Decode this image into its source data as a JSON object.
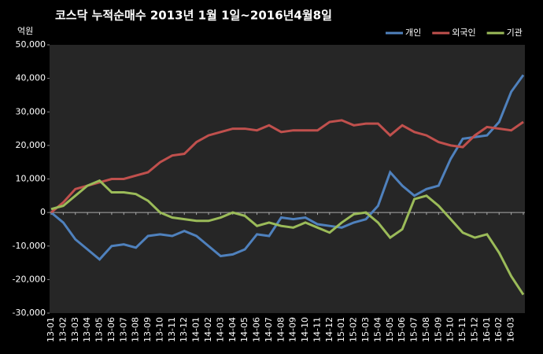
{
  "chart_data": {
    "type": "line",
    "title": "코스닥 누적순매수 2013년 1월 1일~2016년4월8일",
    "y_label": "억원",
    "categories": [
      "13-01",
      "13-02",
      "13-03",
      "13-04",
      "13-05",
      "13-06",
      "13-07",
      "13-08",
      "13-09",
      "13-10",
      "13-11",
      "13-12",
      "14-01",
      "14-02",
      "14-03",
      "14-04",
      "14-05",
      "14-06",
      "14-07",
      "14-08",
      "14-09",
      "14-10",
      "14-11",
      "14-12",
      "15-01",
      "15-02",
      "15-03",
      "15-04",
      "15-05",
      "15-06",
      "15-07",
      "15-08",
      "15-09",
      "15-10",
      "15-11",
      "15-12",
      "16-01",
      "16-02",
      "16-03",
      null
    ],
    "series": [
      {
        "name": "개인",
        "color": "#4f81bd",
        "values": [
          0,
          -3000,
          -8000,
          -11000,
          -14000,
          -10000,
          -9500,
          -10500,
          -7000,
          -6500,
          -7000,
          -5500,
          -7000,
          -10000,
          -13000,
          -12500,
          -11000,
          -6500,
          -7000,
          -1500,
          -2000,
          -1500,
          -3500,
          -4000,
          -4500,
          -3000,
          -2000,
          2000,
          12000,
          8000,
          5000,
          7000,
          8000,
          16000,
          22000,
          22500,
          23000,
          27000,
          36000,
          41000
        ]
      },
      {
        "name": "외국인",
        "color": "#c0504d",
        "values": [
          0,
          3000,
          7000,
          8000,
          9000,
          10000,
          10000,
          11000,
          12000,
          15000,
          17000,
          17500,
          21000,
          23000,
          24000,
          25000,
          25000,
          24500,
          26000,
          24000,
          24500,
          24500,
          24500,
          27000,
          27500,
          26000,
          26500,
          26500,
          23000,
          26000,
          24000,
          23000,
          21000,
          20000,
          19500,
          23000,
          25500,
          25000,
          24500,
          27000
        ]
      },
      {
        "name": "기관",
        "color": "#9bbb59",
        "values": [
          1000,
          2000,
          5000,
          8000,
          9500,
          6000,
          6000,
          5500,
          3500,
          0,
          -1500,
          -2000,
          -2500,
          -2500,
          -1500,
          0,
          -1000,
          -4000,
          -3000,
          -4000,
          -4500,
          -3000,
          -4500,
          -6000,
          -3000,
          -500,
          0,
          -3000,
          -7500,
          -5000,
          4000,
          5000,
          2000,
          -2000,
          -6000,
          -7500,
          -6500,
          -12000,
          -19000,
          -24500
        ]
      }
    ],
    "ylim": [
      -30000,
      50000
    ],
    "yticks": [
      {
        "value": -30000,
        "label": "-30,000"
      },
      {
        "value": -20000,
        "label": "-20,000"
      },
      {
        "value": -10000,
        "label": "-10,000"
      },
      0,
      {
        "value": 10000,
        "label": "10,000"
      },
      {
        "value": 20000,
        "label": "20,000"
      },
      {
        "value": 30000,
        "label": "30,000"
      },
      {
        "value": 40000,
        "label": "40,000"
      },
      {
        "value": 50000,
        "label": "50,000"
      }
    ],
    "legend": "top-right"
  }
}
